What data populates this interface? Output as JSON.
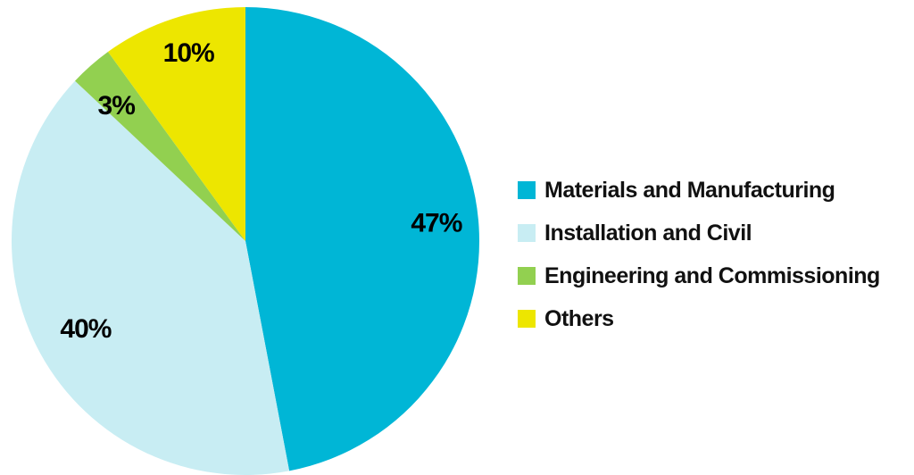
{
  "chart_data": {
    "type": "pie",
    "slices": [
      {
        "label": "Materials and Manufacturing",
        "value": 47,
        "value_label": "47%",
        "color": "#00B6D6"
      },
      {
        "label": "Installation and Civil",
        "value": 40,
        "value_label": "40%",
        "color": "#C8EDF3"
      },
      {
        "label": "Engineering and Commissioning",
        "value": 3,
        "value_label": "3%",
        "color": "#92D050"
      },
      {
        "label": "Others",
        "value": 10,
        "value_label": "10%",
        "color": "#EDE600"
      }
    ],
    "start_angle": "12 o'clock",
    "direction": "clockwise",
    "legend_position": "right"
  }
}
